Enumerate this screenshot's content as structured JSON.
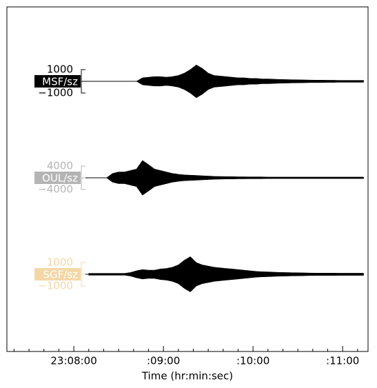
{
  "chart_data": {
    "type": "seismogram",
    "x_label": "Time (hr:min:sec)",
    "xlim": [
      15.2,
      257
    ],
    "xticks": [
      {
        "value": 60,
        "label": "23:08:00"
      },
      {
        "value": 120,
        "label": ":09:00"
      },
      {
        "value": 180,
        "label": ":10:00"
      },
      {
        "value": 240,
        "label": ":11:00"
      }
    ],
    "xminorticks": [
      20,
      30,
      40,
      50,
      70,
      80,
      90,
      100,
      110,
      130,
      140,
      150,
      160,
      170,
      190,
      200,
      210,
      220,
      230,
      250
    ],
    "x": [
      70,
      74,
      78,
      82,
      86,
      90,
      94,
      98,
      102,
      106,
      110,
      114,
      118,
      122,
      126,
      130,
      134,
      138,
      142,
      146,
      150,
      154,
      158,
      162,
      166,
      170,
      174,
      178,
      182,
      186,
      190,
      194,
      198,
      202,
      206,
      210,
      214,
      218,
      222,
      226,
      230,
      234,
      238,
      242,
      246,
      250,
      254
    ],
    "series": [
      {
        "name": "MSF/sz",
        "color": "#000000",
        "label_color": "#000000",
        "ylim": [
          -1000,
          1000
        ],
        "yticks": [
          1000,
          {
            "value": -1000,
            "label": "−1000"
          }
        ],
        "values": [
          0,
          0,
          0,
          0,
          0,
          0,
          0,
          0,
          0,
          300,
          350,
          400,
          400,
          350,
          400,
          500,
          700,
          1000,
          1400,
          1100,
          700,
          500,
          450,
          400,
          350,
          300,
          300,
          250,
          250,
          200,
          200,
          180,
          160,
          150,
          140,
          130,
          120,
          110,
          100,
          100,
          90,
          90,
          80,
          80,
          80,
          80,
          80
        ]
      },
      {
        "name": "OUL/sz",
        "color": "#000000",
        "label_color": "#b4b4b4",
        "ylim": [
          -4000,
          4000
        ],
        "yticks": [
          4000,
          {
            "value": -4000,
            "label": "−4000"
          }
        ],
        "values": [
          0,
          0,
          0,
          0,
          1500,
          2000,
          2000,
          2500,
          3000,
          5900,
          4500,
          3000,
          2500,
          2000,
          1500,
          1200,
          1000,
          900,
          800,
          700,
          600,
          500,
          450,
          400,
          400,
          350,
          350,
          300,
          300,
          300,
          250,
          250,
          250,
          250,
          250,
          250,
          250,
          250,
          250,
          250,
          250,
          250,
          250,
          250,
          250,
          250,
          250
        ]
      },
      {
        "name": "SGF/sz",
        "color": "#000000",
        "label_color": "#f5d7a6",
        "ylim": [
          -1000,
          1000
        ],
        "yticks": [
          1000,
          {
            "value": -1000,
            "label": "−1000"
          }
        ],
        "values": [
          80,
          80,
          80,
          80,
          80,
          80,
          80,
          150,
          300,
          400,
          350,
          350,
          450,
          500,
          600,
          800,
          1200,
          1500,
          1000,
          800,
          700,
          600,
          550,
          500,
          450,
          400,
          350,
          300,
          250,
          220,
          200,
          180,
          160,
          150,
          140,
          130,
          120,
          110,
          100,
          100,
          100,
          100,
          90,
          90,
          90,
          90,
          90
        ]
      }
    ]
  }
}
